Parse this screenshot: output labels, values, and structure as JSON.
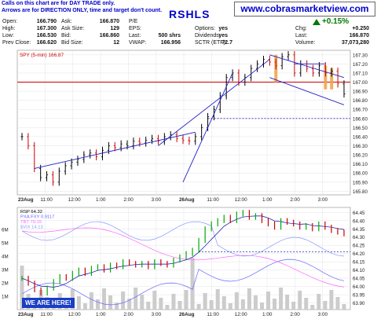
{
  "notes": {
    "line1": "Calls on this chart are for DAY TRADE only.",
    "line2": "Arrows are for DIRECTION ONLY, time and target don't count."
  },
  "site": "www.cobrasmarketview.com",
  "ticker": "RSHLS",
  "header": {
    "open_label": "Open:",
    "open": "166.790",
    "high_label": "High:",
    "high": "167.300",
    "low_label": "Low:",
    "low": "166.530",
    "prev_label": "Prev Close:",
    "prev": "166.620",
    "ask_label": "Ask:",
    "ask": "166.870",
    "asksize_label": "Ask Size:",
    "asksize": "129",
    "bid_label": "Bid:",
    "bid": "166.860",
    "bidsize_label": "Bid Size:",
    "bidsize": "12",
    "pe_label": "P/E",
    "pe": "",
    "eps_label": "EPS:",
    "eps": "",
    "last_label": "Last:",
    "last": "500 shrs",
    "vwap_label": "VWAP:",
    "vwap": "166.956",
    "options_label": "Options:",
    "options": "yes",
    "dividends_label": "Dividends:",
    "dividends": "yes",
    "sctr_label": "SCTR (ETF):",
    "sctr": "72.7",
    "pct_change": "+0.15%",
    "chg_label": "Chg:",
    "chg": "+0.250",
    "last2_label": "Last:",
    "last2": "166.870",
    "volume_label": "Volume:",
    "volume": "37,073,280"
  },
  "badge": "WE ARE HERE!",
  "colors": {
    "up": "#00aa00",
    "down": "#cc0000",
    "neutral": "#000000",
    "resistance": "#cc0000",
    "trend": "#2222cc",
    "orange": "#f0a040",
    "rsi_line": "#0000aa",
    "pxa": "#6666ff",
    "tbt": "#ff66ff",
    "vix": "#8899ff",
    "volume": "#cccccc"
  },
  "chart_data": [
    {
      "type": "line",
      "name": "price",
      "title": "",
      "legend": [
        "SPY (5-min) 166.87"
      ],
      "x_ticks": [
        "23Aug",
        "11:00",
        "12:00",
        "1:00",
        "2:00",
        "3:00",
        "26Aug",
        "11:00",
        "12:00",
        "1:00",
        "2:00",
        "3:00"
      ],
      "y_ticks": [
        165.8,
        165.9,
        166.0,
        166.1,
        166.2,
        166.3,
        166.4,
        166.5,
        166.6,
        166.7,
        166.8,
        166.9,
        167.0,
        167.1,
        167.2,
        167.3
      ],
      "ylim": [
        165.76,
        167.35
      ],
      "close_series": [
        166.4,
        166.3,
        166.05,
        165.95,
        165.98,
        165.9,
        166.02,
        166.08,
        166.12,
        166.15,
        166.2,
        166.22,
        166.18,
        166.25,
        166.3,
        166.28,
        166.32,
        166.3,
        166.35,
        166.33,
        166.36,
        166.38,
        166.35,
        166.4,
        166.42,
        166.38,
        166.36,
        166.35,
        166.4,
        166.5,
        166.62,
        166.7,
        166.85,
        167.05,
        167.1,
        167.0,
        167.05,
        167.15,
        167.2,
        167.25,
        167.22,
        167.18,
        167.28,
        167.3,
        167.1,
        167.2,
        167.15,
        167.1,
        167.18,
        167.1,
        167.12,
        166.98,
        166.87
      ],
      "resistance_level": 167.0,
      "support_level": 166.6,
      "annotations": [
        "trend lines",
        "channel lines",
        "orange highlight bars"
      ]
    },
    {
      "type": "line",
      "name": "indicators",
      "legend": [
        "RSP 64.32",
        "PXA:FXY 0.9117",
        "TBT 79.15",
        "$VIX 14.13"
      ],
      "x_ticks": [
        "23Aug",
        "11:00",
        "12:00",
        "1:00",
        "2:00",
        "3:00",
        "26Aug",
        "11:00",
        "12:00",
        "1:00",
        "2:00",
        "3:00"
      ],
      "y_ticks_right": [
        63.9,
        63.95,
        64.0,
        64.05,
        64.1,
        64.15,
        64.2,
        64.25,
        64.3,
        64.35,
        64.4,
        64.45
      ],
      "y_ticks_left": [
        "1M",
        "2M",
        "3M",
        "4M",
        "5M",
        "6M"
      ],
      "ylim": [
        63.86,
        64.48
      ],
      "rsp_series": [
        64.05,
        64.02,
        63.98,
        63.96,
        63.99,
        64.03,
        64.06,
        64.05,
        64.08,
        64.1,
        64.08,
        64.11,
        64.12,
        64.1,
        64.13,
        64.12,
        64.15,
        64.14,
        64.13,
        64.14,
        64.12,
        64.15,
        64.14,
        64.13,
        64.16,
        64.18,
        64.2,
        64.22,
        64.28,
        64.35,
        64.38,
        64.4,
        64.42,
        64.4,
        64.44,
        64.45,
        64.42,
        64.43,
        64.4,
        64.38,
        64.36,
        64.4,
        64.39,
        64.38,
        64.36,
        64.37,
        64.35,
        64.38,
        64.36,
        64.34,
        64.33,
        64.32
      ],
      "support_level": 64.21
    }
  ]
}
